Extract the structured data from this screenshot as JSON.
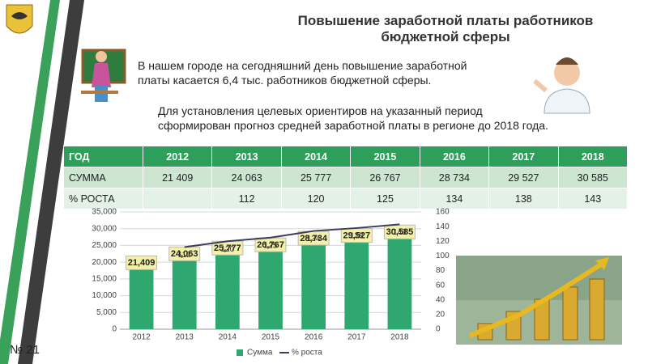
{
  "header": {
    "title_lines": [
      "Повышение заработной платы работников",
      "бюджетной сферы"
    ]
  },
  "text": {
    "paragraph1_lines": [
      "В нашем городе на сегодняшний день повышение заработной",
      "платы касается 6,4 тыс. работников бюджетной сферы."
    ],
    "paragraph2_lines": [
      "Для установления целевых ориентиров на указанный период",
      "сформирован прогноз средней заработной платы в регионе до 2018 года."
    ]
  },
  "table": {
    "header": [
      "ГОД",
      "2012",
      "2013",
      "2014",
      "2015",
      "2016",
      "2017",
      "2018"
    ],
    "rows": [
      [
        "СУММА",
        "21 409",
        "24 063",
        "25 777",
        "26 767",
        "28 734",
        "29 527",
        "30 585"
      ],
      [
        "% РОСТА",
        null,
        "112",
        "120",
        "125",
        "134",
        "138",
        "143"
      ]
    ]
  },
  "footer": {
    "slide_number": "№ 21"
  },
  "chart_data": {
    "type": "bar",
    "categories": [
      "2012",
      "2013",
      "2014",
      "2015",
      "2016",
      "2017",
      "2018"
    ],
    "series": [
      {
        "name": "Сумма",
        "color": "#2ea86f",
        "values": [
          21409,
          24063,
          25777,
          26767,
          28734,
          29527,
          30585
        ],
        "value_labels": [
          "21,409",
          "24,063",
          "25,777",
          "26,767",
          "28,734",
          "29,527",
          "30,585"
        ]
      },
      {
        "name": "% роста",
        "type": "line",
        "axis": "y2",
        "color": "#3b3d5e",
        "values": [
          null,
          112,
          120,
          125,
          134,
          138,
          143
        ]
      }
    ],
    "ylim": [
      0,
      35000
    ],
    "yticks": [
      0,
      {
        "value": 5000,
        "label": "5,000"
      },
      {
        "value": 10000,
        "label": "10,000"
      },
      {
        "value": 15000,
        "label": "15,000"
      },
      {
        "value": 20000,
        "label": "20,000"
      },
      {
        "value": 25000,
        "label": "25,000"
      },
      {
        "value": 30000,
        "label": "30,000"
      },
      {
        "value": 35000,
        "label": "35,000"
      }
    ],
    "y2lim": [
      0,
      160
    ],
    "y2ticks": [
      0,
      20,
      40,
      60,
      80,
      100,
      120,
      140,
      160
    ],
    "grid": true,
    "legend": "bottom"
  }
}
